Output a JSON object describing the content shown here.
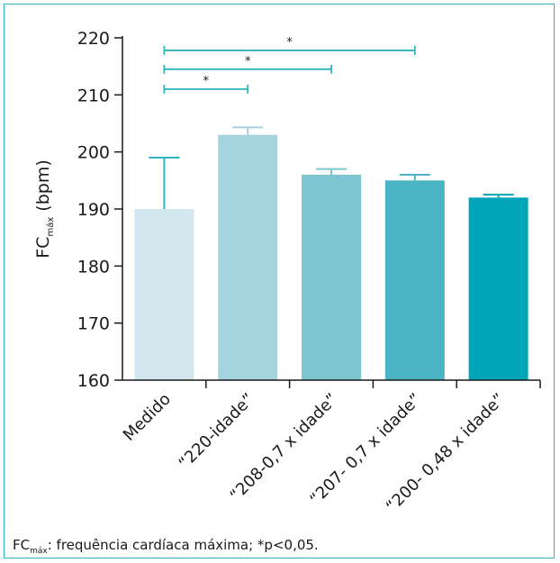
{
  "chart_data": {
    "type": "bar",
    "categories": [
      "Medido",
      "“220-idade”",
      "“208-0,7 x idade”",
      "“207- 0,7 x idade”",
      "“200- 0,48 x idade”"
    ],
    "values": [
      190,
      203,
      196,
      195,
      192
    ],
    "error_upper": [
      199,
      204.3,
      197,
      196,
      192.5
    ],
    "bar_colors": [
      "#d3e8ee",
      "#a5d4df",
      "#7cc5d1",
      "#4bb4c5",
      "#00a6b8"
    ],
    "ylabel_main": "FC",
    "ylabel_sub": "máx",
    "ylabel_unit": "(bpm)",
    "ylim": [
      160,
      220
    ],
    "yticks": [
      160,
      170,
      180,
      190,
      200,
      210,
      220
    ],
    "significance": [
      {
        "from": 0,
        "to": 1,
        "y": 211,
        "label": "*"
      },
      {
        "from": 0,
        "to": 2,
        "y": 214.5,
        "label": "*"
      },
      {
        "from": 0,
        "to": 3,
        "y": 217.8,
        "label": "*"
      }
    ],
    "bracket_color": "#2fb3c1",
    "grid": false
  },
  "footnote": {
    "abbr": "FC",
    "abbr_sub": "máx",
    "text": ": frequência cardíaca máxima; *p<0,05."
  }
}
